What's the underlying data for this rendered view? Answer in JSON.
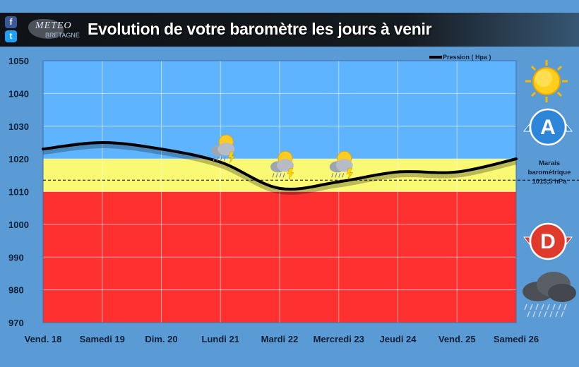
{
  "header": {
    "title": "Evolution de votre baromètre les jours à venir",
    "logo_line1": "METEO",
    "logo_line2": "BRETAGNE",
    "facebook_glyph": "f",
    "twitter_glyph": "t"
  },
  "chart_data": {
    "type": "line",
    "series": [
      {
        "name": "Pression ( Hpa )",
        "values": [
          1023,
          1025,
          1023,
          1019,
          1011,
          1013,
          1016,
          1016,
          1020
        ]
      }
    ],
    "categories": [
      "Vend. 18",
      "Samedi 19",
      "Dim. 20",
      "Lundi 21",
      "Mardi 22",
      "Mercredi 23",
      "Jeudi 24",
      "Vend. 25",
      "Samedi 26"
    ],
    "ylim": [
      970,
      1050
    ],
    "yticks": [
      1050,
      1040,
      1030,
      1020,
      1010,
      1000,
      990,
      980,
      970
    ],
    "bands": [
      {
        "from": 1020,
        "to": 1050,
        "color": "#5fb4ff"
      },
      {
        "from": 1010,
        "to": 1020,
        "color": "#f9f974"
      },
      {
        "from": 970,
        "to": 1010,
        "color": "#ff3130"
      }
    ],
    "reference": {
      "value": 1013.5,
      "label_lines": [
        "Marais",
        "barométrique",
        "1013,5 hPa"
      ]
    },
    "weather_icons": [
      {
        "category": "Lundi 21",
        "value": 1023,
        "icon": "sun-cloud-storm-icon"
      },
      {
        "category": "Mardi 22",
        "value": 1018,
        "icon": "sun-cloud-storm-icon"
      },
      {
        "category": "Mercredi 23",
        "value": 1018,
        "icon": "sun-cloud-storm-icon"
      }
    ],
    "grid": true,
    "legend_position": "top-right",
    "line_color": "#000000"
  },
  "side_icons": {
    "high_letter": "A",
    "low_letter": "D",
    "icons": [
      "sun-icon",
      "anticyclone-icon",
      "depression-icon",
      "rain-cloud-icon"
    ]
  }
}
